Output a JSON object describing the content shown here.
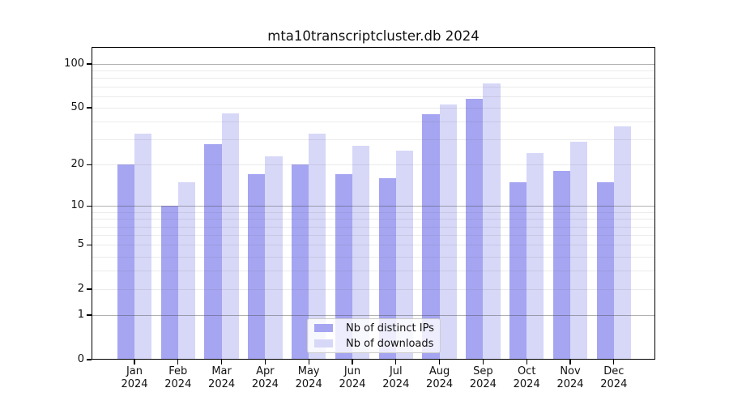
{
  "title": "mta10transcriptcluster.db 2024",
  "legend": {
    "items": [
      {
        "label": "Nb of distinct IPs",
        "color": "#a5a5f2"
      },
      {
        "label": "Nb of downloads",
        "color": "#d7d7f8"
      }
    ]
  },
  "chart_data": {
    "type": "bar",
    "title": "mta10transcriptcluster.db 2024",
    "categories": [
      "Jan",
      "Feb",
      "Mar",
      "Apr",
      "May",
      "Jun",
      "Jul",
      "Aug",
      "Sep",
      "Oct",
      "Nov",
      "Dec"
    ],
    "year": "2024",
    "series": [
      {
        "name": "Nb of distinct IPs",
        "color": "#a5a5f2",
        "values": [
          20,
          10,
          28,
          17,
          20,
          17,
          16,
          45,
          58,
          15,
          18,
          15
        ]
      },
      {
        "name": "Nb of downloads",
        "color": "#d7d7f8",
        "values": [
          33,
          15,
          46,
          23,
          33,
          27,
          25,
          53,
          74,
          24,
          29,
          37
        ]
      }
    ],
    "yscale": "log1p",
    "ylim": [
      0,
      132
    ],
    "yticks": [
      0,
      1,
      2,
      5,
      10,
      20,
      50,
      100
    ],
    "ygrid_major": [
      1,
      10,
      100
    ],
    "ygrid_minor": [
      2,
      3,
      4,
      5,
      6,
      7,
      8,
      9,
      20,
      30,
      40,
      50,
      60,
      70,
      80,
      90
    ],
    "grid": true,
    "grid_above_bars": true,
    "legend_position": "lower center"
  }
}
